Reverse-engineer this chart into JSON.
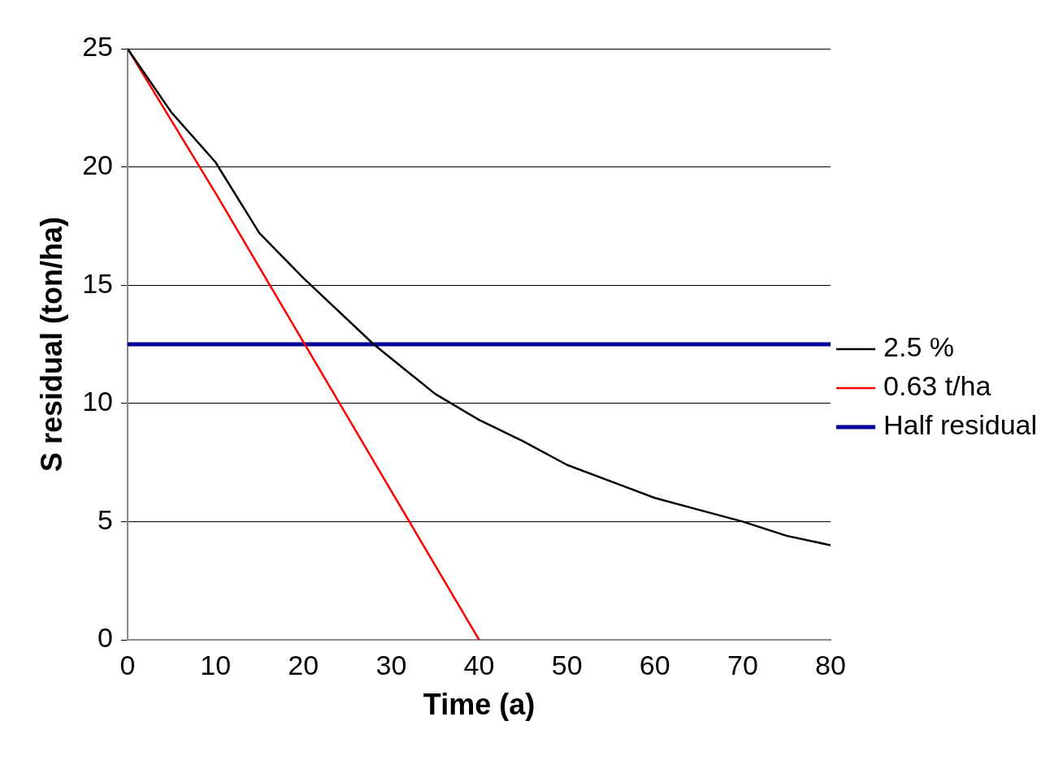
{
  "chart_data": {
    "type": "line",
    "xlabel": "Time (a)",
    "ylabel": "S residual (ton/ha)",
    "xlim": [
      0,
      80
    ],
    "xticks": [
      0,
      10,
      20,
      30,
      40,
      50,
      60,
      70,
      80
    ],
    "ylim": [
      0,
      25
    ],
    "yticks": [
      0,
      5,
      10,
      15,
      20,
      25
    ],
    "grid": "y",
    "legend": "right",
    "marker": "none",
    "line_style": "solid",
    "series": [
      {
        "name": "2.5 %",
        "color": "#000000",
        "x": [
          0,
          5,
          10,
          15,
          20,
          28,
          30,
          35,
          40,
          45,
          50,
          55,
          60,
          65,
          70,
          75,
          80
        ],
        "values": [
          25,
          22.3,
          20.2,
          17.2,
          15.3,
          12.5,
          11.9,
          10.4,
          9.3,
          8.4,
          7.4,
          6.7,
          6.0,
          5.5,
          5.0,
          4.4,
          4.0
        ]
      },
      {
        "name": "0.63 t/ha",
        "color": "#ff0000",
        "x": [
          0,
          10,
          20,
          30,
          40
        ],
        "values": [
          25,
          18.9,
          12.6,
          6.3,
          0
        ]
      },
      {
        "name": "Half residual",
        "color": "#000099",
        "x": [
          0,
          80
        ],
        "values": [
          12.5,
          12.5
        ]
      }
    ]
  }
}
